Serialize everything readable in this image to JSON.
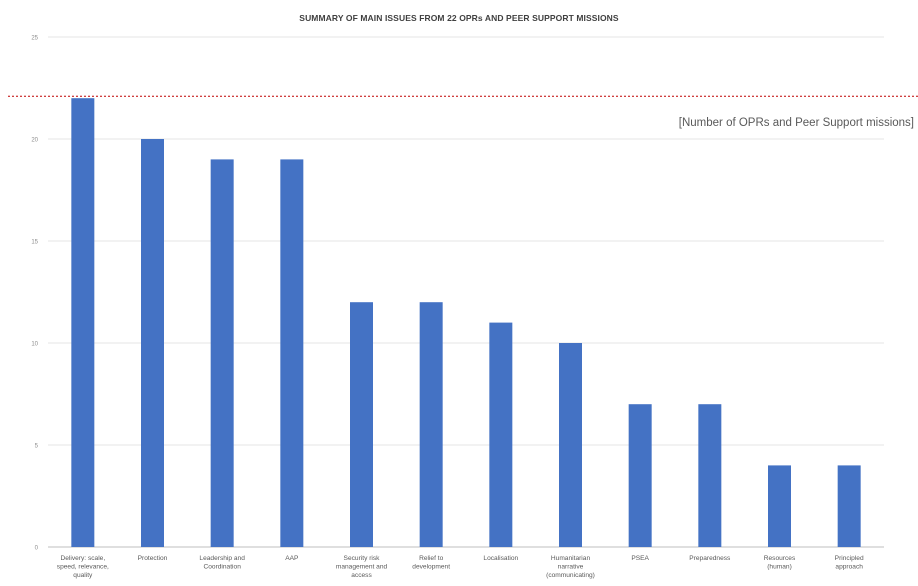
{
  "chart_data": {
    "type": "bar",
    "title": "SUMMARY OF MAIN ISSUES FROM 22 OPRs AND PEER SUPPORT MISSIONS",
    "xlabel": "",
    "ylabel": "",
    "ylim": [
      0,
      25
    ],
    "yticks": [
      0,
      5,
      10,
      15,
      20,
      25
    ],
    "grid": true,
    "categories": [
      "Delivery: scale, speed, relevance, quality",
      "Protection",
      "Leadership and Coordination",
      "AAP",
      "Security risk management and access",
      "Relief to development",
      "Localisation",
      "Humanitarian narrative (communicating)",
      "PSEA",
      "Preparedness",
      "Resources (human)",
      "Principled approach"
    ],
    "category_lines": [
      [
        "Delivery: scale,",
        "speed, relevance,",
        "quality"
      ],
      [
        "Protection"
      ],
      [
        "Leadership and",
        "Coordination"
      ],
      [
        "AAP"
      ],
      [
        "Security risk",
        "management and",
        "access"
      ],
      [
        "Relief to",
        "development"
      ],
      [
        "Localisation"
      ],
      [
        "Humanitarian",
        "narrative",
        "(communicating)"
      ],
      [
        "PSEA"
      ],
      [
        "Preparedness"
      ],
      [
        "Resources",
        "(human)"
      ],
      [
        "Principled",
        "approach"
      ]
    ],
    "values": [
      22,
      20,
      19,
      19,
      12,
      12,
      11,
      10,
      7,
      7,
      4,
      4
    ],
    "bar_color": "#4472C4",
    "reference_line": {
      "value": 22,
      "label": "[Number of OPRs and Peer Support missions]",
      "color": "#C00000",
      "style": "dotted"
    }
  }
}
